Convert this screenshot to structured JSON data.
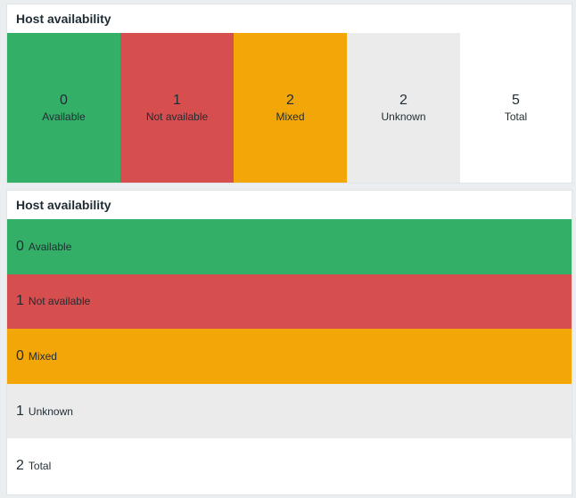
{
  "colors": {
    "available": "#34af67",
    "not_available": "#d64e4e",
    "mixed": "#f2a608",
    "unknown": "#ebebeb",
    "total": "#ffffff",
    "dashboard_bg": "#ebeef0"
  },
  "widget_horizontal": {
    "title": "Host availability",
    "items": [
      {
        "count": "0",
        "label": "Available"
      },
      {
        "count": "1",
        "label": "Not available"
      },
      {
        "count": "2",
        "label": "Mixed"
      },
      {
        "count": "2",
        "label": "Unknown"
      },
      {
        "count": "5",
        "label": "Total"
      }
    ]
  },
  "widget_vertical": {
    "title": "Host availability",
    "items": [
      {
        "count": "0",
        "label": "Available"
      },
      {
        "count": "1",
        "label": "Not available"
      },
      {
        "count": "0",
        "label": "Mixed"
      },
      {
        "count": "1",
        "label": "Unknown"
      },
      {
        "count": "2",
        "label": "Total"
      }
    ]
  }
}
